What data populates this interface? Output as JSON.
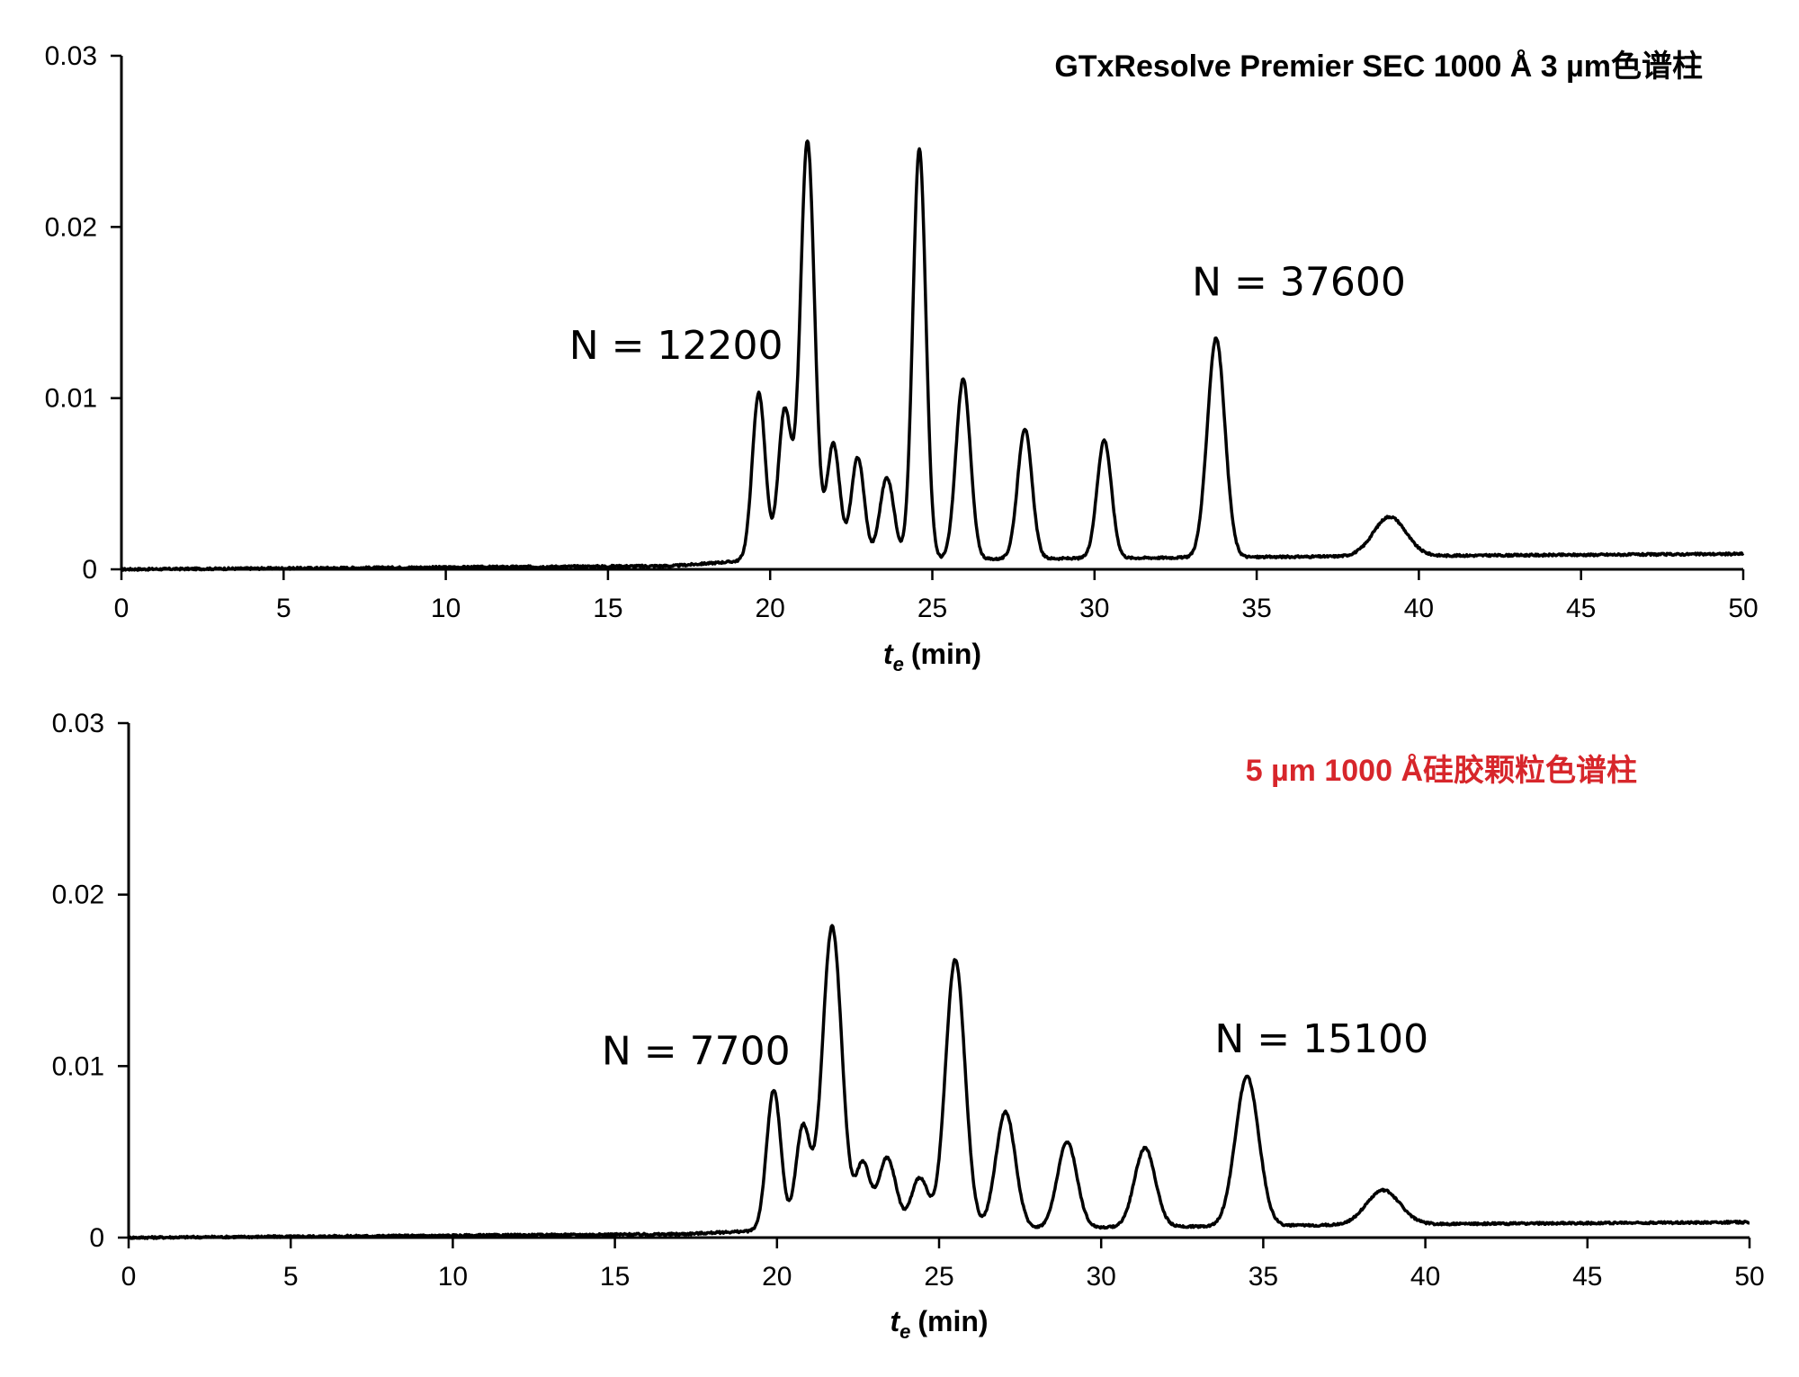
{
  "chart_data": [
    {
      "type": "line",
      "title": "GTxResolve Premier SEC 1000 Å 3 µm色谱柱",
      "title_color": "#000000",
      "xlabel_var": "t",
      "xlabel_sub": "e",
      "xlabel_unit": "(min)",
      "xlim": [
        0,
        50
      ],
      "ylim": [
        0,
        0.03
      ],
      "xticks": [
        "0",
        "5",
        "10",
        "15",
        "20",
        "25",
        "30",
        "35",
        "40",
        "45",
        "50"
      ],
      "yticks": [
        "0",
        "0.01",
        "0.02",
        "0.03"
      ],
      "grid": false,
      "baseline": [
        [
          0,
          0.0
        ],
        [
          17,
          0.0002
        ],
        [
          19.2,
          0.0005
        ],
        [
          41,
          0.0008
        ],
        [
          50,
          0.0009
        ]
      ],
      "peaks": [
        {
          "t": 19.65,
          "h": 0.0098,
          "w": 0.2
        },
        {
          "t": 20.45,
          "h": 0.0088,
          "w": 0.2
        },
        {
          "t": 21.15,
          "h": 0.0245,
          "w": 0.22
        },
        {
          "t": 21.95,
          "h": 0.0068,
          "w": 0.2
        },
        {
          "t": 22.7,
          "h": 0.006,
          "w": 0.2
        },
        {
          "t": 23.6,
          "h": 0.0048,
          "w": 0.22
        },
        {
          "t": 24.6,
          "h": 0.024,
          "w": 0.2
        },
        {
          "t": 25.95,
          "h": 0.0105,
          "w": 0.22
        },
        {
          "t": 27.85,
          "h": 0.0076,
          "w": 0.22
        },
        {
          "t": 30.3,
          "h": 0.0069,
          "w": 0.22
        },
        {
          "t": 33.75,
          "h": 0.0128,
          "w": 0.27
        },
        {
          "t": 39.1,
          "h": 0.0023,
          "w": 0.5
        }
      ],
      "annotations": [
        {
          "text": "N = 12200",
          "t": 17.1,
          "y": 0.0123
        },
        {
          "text": "N = 37600",
          "t": 36.3,
          "y": 0.016
        }
      ]
    },
    {
      "type": "line",
      "title": "5 µm 1000 Å硅胶颗粒色谱柱",
      "title_color": "#d7262b",
      "xlabel_var": "t",
      "xlabel_sub": "e",
      "xlabel_unit": "(min)",
      "xlim": [
        0,
        50
      ],
      "ylim": [
        0,
        0.03
      ],
      "xticks": [
        "0",
        "5",
        "10",
        "15",
        "20",
        "25",
        "30",
        "35",
        "40",
        "45",
        "50"
      ],
      "yticks": [
        "0",
        "0.01",
        "0.02",
        "0.03"
      ],
      "grid": false,
      "baseline": [
        [
          0,
          0.0
        ],
        [
          17,
          0.0002
        ],
        [
          19.5,
          0.0004
        ],
        [
          41,
          0.0008
        ],
        [
          50,
          0.0009
        ]
      ],
      "peaks": [
        {
          "t": 19.9,
          "h": 0.0082,
          "w": 0.22
        },
        {
          "t": 20.8,
          "h": 0.006,
          "w": 0.22
        },
        {
          "t": 21.7,
          "h": 0.0177,
          "w": 0.3
        },
        {
          "t": 22.65,
          "h": 0.0038,
          "w": 0.22
        },
        {
          "t": 23.4,
          "h": 0.0042,
          "w": 0.27
        },
        {
          "t": 24.4,
          "h": 0.003,
          "w": 0.26
        },
        {
          "t": 25.5,
          "h": 0.0157,
          "w": 0.3
        },
        {
          "t": 27.05,
          "h": 0.0068,
          "w": 0.3
        },
        {
          "t": 28.95,
          "h": 0.005,
          "w": 0.3
        },
        {
          "t": 31.35,
          "h": 0.0046,
          "w": 0.32
        },
        {
          "t": 34.5,
          "h": 0.0087,
          "w": 0.36
        },
        {
          "t": 38.7,
          "h": 0.002,
          "w": 0.52
        }
      ],
      "annotations": [
        {
          "text": "N = 7700",
          "t": 17.5,
          "y": 0.0101
        },
        {
          "text": "N = 15100",
          "t": 36.8,
          "y": 0.0108
        }
      ]
    }
  ]
}
